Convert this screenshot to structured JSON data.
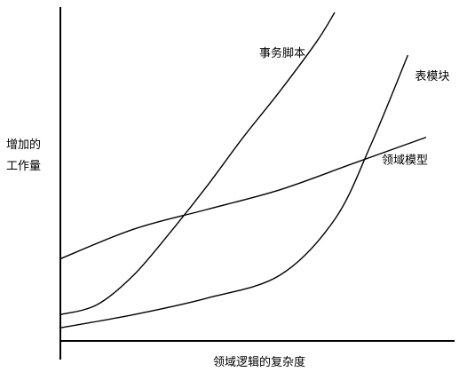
{
  "chart_data": {
    "type": "line",
    "title": "",
    "xlabel": "领域逻辑的复杂度",
    "ylabel_lines": [
      "增加的",
      "工作量"
    ],
    "xlim": [
      0,
      100
    ],
    "ylim": [
      0,
      100
    ],
    "x_ticks": [],
    "y_ticks": [],
    "grid": false,
    "legend": "none",
    "series": [
      {
        "name": "事务脚本",
        "label_position": "top-center",
        "x": [
          0,
          10,
          20,
          30,
          40,
          50,
          60,
          70,
          75
        ],
        "y": [
          8,
          11,
          20,
          33,
          47,
          62,
          76,
          91,
          100
        ]
      },
      {
        "name": "表模块",
        "label_position": "top-right",
        "x": [
          0,
          20,
          40,
          60,
          75,
          85,
          95
        ],
        "y": [
          4,
          8,
          13,
          20,
          37,
          60,
          87
        ]
      },
      {
        "name": "领域模型",
        "label_position": "right",
        "x": [
          0,
          20,
          40,
          60,
          80,
          100
        ],
        "y": [
          25,
          34,
          40,
          46,
          54,
          62
        ]
      }
    ]
  }
}
